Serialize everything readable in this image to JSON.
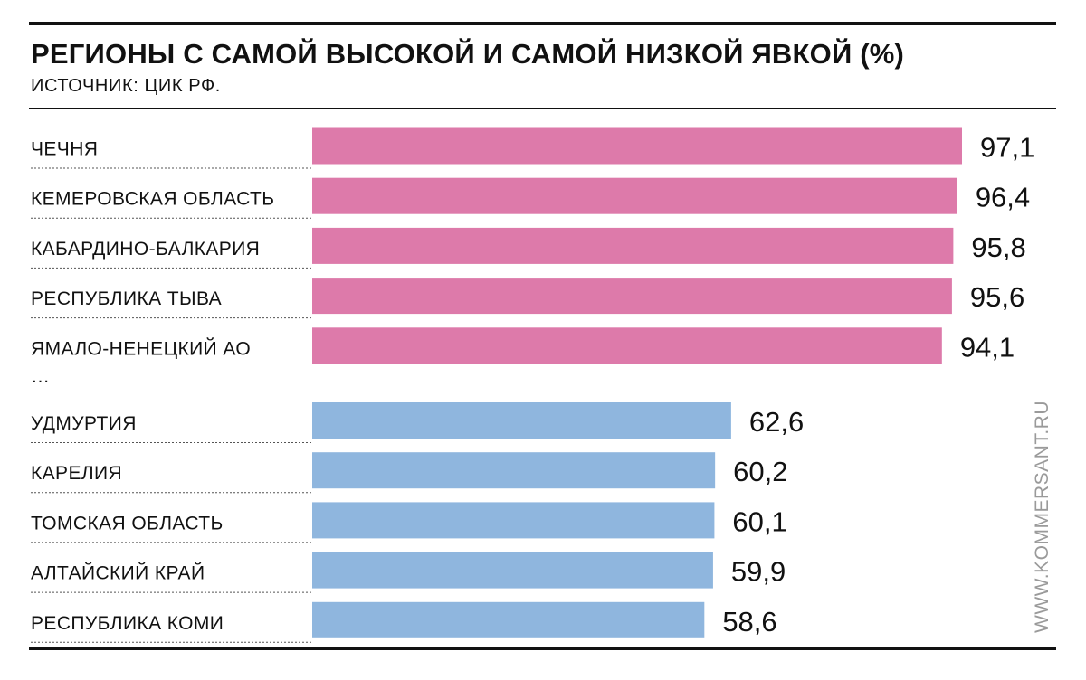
{
  "chart_data": {
    "type": "bar",
    "orientation": "horizontal",
    "title": "РЕГИОНЫ С САМОЙ ВЫСОКОЙ И САМОЙ НИЗКОЙ ЯВКОЙ (%)",
    "subtitle": "ИСТОЧНИК: ЦИК РФ.",
    "separator": "…",
    "series": [
      {
        "color": "#dd7aaa",
        "categories": [
          "ЧЕЧНЯ",
          "КЕМЕРОВСКАЯ ОБЛАСТЬ",
          "КАБАРДИНО-БАЛКАРИЯ",
          "РЕСПУБЛИКА ТЫВА",
          "ЯМАЛО-НЕНЕЦКИЙ АО"
        ],
        "values": [
          97.1,
          96.4,
          95.8,
          95.6,
          94.1
        ],
        "labels": [
          "97,1",
          "96,4",
          "95,8",
          "95,6",
          "94,1"
        ]
      },
      {
        "color": "#8fb6de",
        "categories": [
          "УДМУРТИЯ",
          "КАРЕЛИЯ",
          "ТОМСКАЯ ОБЛАСТЬ",
          "АЛТАЙСКИЙ КРАЙ",
          "РЕСПУБЛИКА КОМИ"
        ],
        "values": [
          62.6,
          60.2,
          60.1,
          59.9,
          58.6
        ],
        "labels": [
          "62,6",
          "60,2",
          "60,1",
          "59,9",
          "58,6"
        ]
      }
    ],
    "xlim": [
      0,
      97.1
    ],
    "grid": false,
    "legend": "none"
  },
  "watermark": "WWW.KOMMERSANT.RU"
}
